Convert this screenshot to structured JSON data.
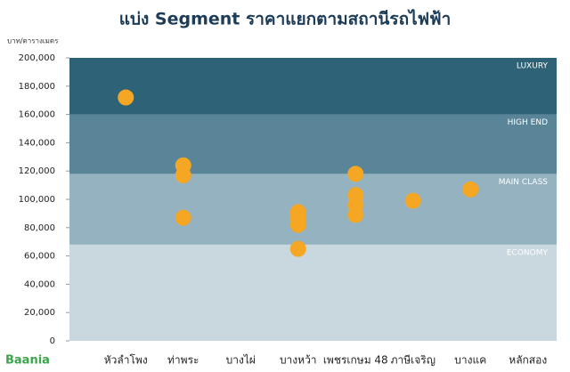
{
  "chart_data": {
    "type": "scatter",
    "title": "แบ่ง Segment ราคาแยกตามสถานีรถไฟฟ้า",
    "y_label": "บาท/ตารางเมตร",
    "logo": "Baania",
    "categories": [
      "หัวลำโพง",
      "ท่าพระ",
      "บางไผ่",
      "บางหว้า",
      "เพชรเกษม 48",
      "ภาษีเจริญ",
      "บางแค",
      "หลักสอง"
    ],
    "ylim": [
      0,
      200000
    ],
    "yticks": [
      {
        "value": 0,
        "label": "0"
      },
      {
        "value": 20000,
        "label": "20,000"
      },
      {
        "value": 40000,
        "label": "40,000"
      },
      {
        "value": 60000,
        "label": "60,000"
      },
      {
        "value": 80000,
        "label": "80,000"
      },
      {
        "value": 100000,
        "label": "100,000"
      },
      {
        "value": 120000,
        "label": "120,000"
      },
      {
        "value": 140000,
        "label": "140,000"
      },
      {
        "value": 160000,
        "label": "160,000"
      },
      {
        "value": 180000,
        "label": "180,000"
      },
      {
        "value": 200000,
        "label": "200,000"
      }
    ],
    "bands": [
      {
        "name": "ECONOMY",
        "from": 0,
        "to": 68000,
        "color": "#c9d7de"
      },
      {
        "name": "MAIN CLASS",
        "from": 68000,
        "to": 118000,
        "color": "#94b2c0"
      },
      {
        "name": "HIGH END",
        "from": 118000,
        "to": 160000,
        "color": "#5a8599"
      },
      {
        "name": "LUXURY",
        "from": 160000,
        "to": 200000,
        "color": "#2e6277"
      }
    ],
    "points": {
      "color": "#f5a623",
      "x": [
        "หัวลำโพง",
        "ท่าพระ",
        "ท่าพระ",
        "ท่าพระ",
        "บางหว้า",
        "บางหว้า",
        "บางหว้า",
        "บางหว้า",
        "เพชรเกษม 48",
        "เพชรเกษม 48",
        "เพชรเกษม 48",
        "เพชรเกษม 48",
        "ภาษีเจริญ",
        "บางแค"
      ],
      "values": [
        172000,
        124000,
        117000,
        87000,
        91000,
        87000,
        82000,
        65000,
        118000,
        103000,
        96000,
        89000,
        99000,
        107000
      ]
    }
  }
}
